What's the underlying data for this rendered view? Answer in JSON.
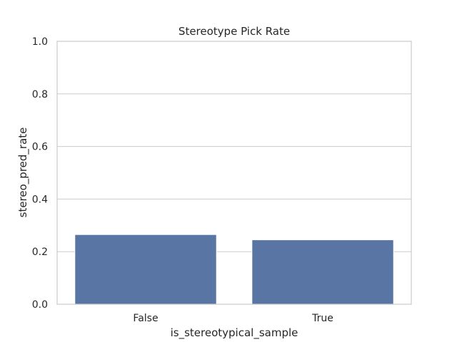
{
  "chart_data": {
    "type": "bar",
    "title": "Stereotype Pick Rate",
    "xlabel": "is_stereotypical_sample",
    "ylabel": "stereo_pred_rate",
    "categories": [
      "False",
      "True"
    ],
    "values": [
      0.265,
      0.245
    ],
    "ylim": [
      0,
      1.0
    ],
    "yticks": [
      0.0,
      0.2,
      0.4,
      0.6,
      0.8,
      1.0
    ],
    "ytick_labels": [
      "0.0",
      "0.2",
      "0.4",
      "0.6",
      "0.8",
      "1.0"
    ],
    "grid": true,
    "legend": "none",
    "bar_color": "#5975a4",
    "grid_color": "#cccccc"
  }
}
